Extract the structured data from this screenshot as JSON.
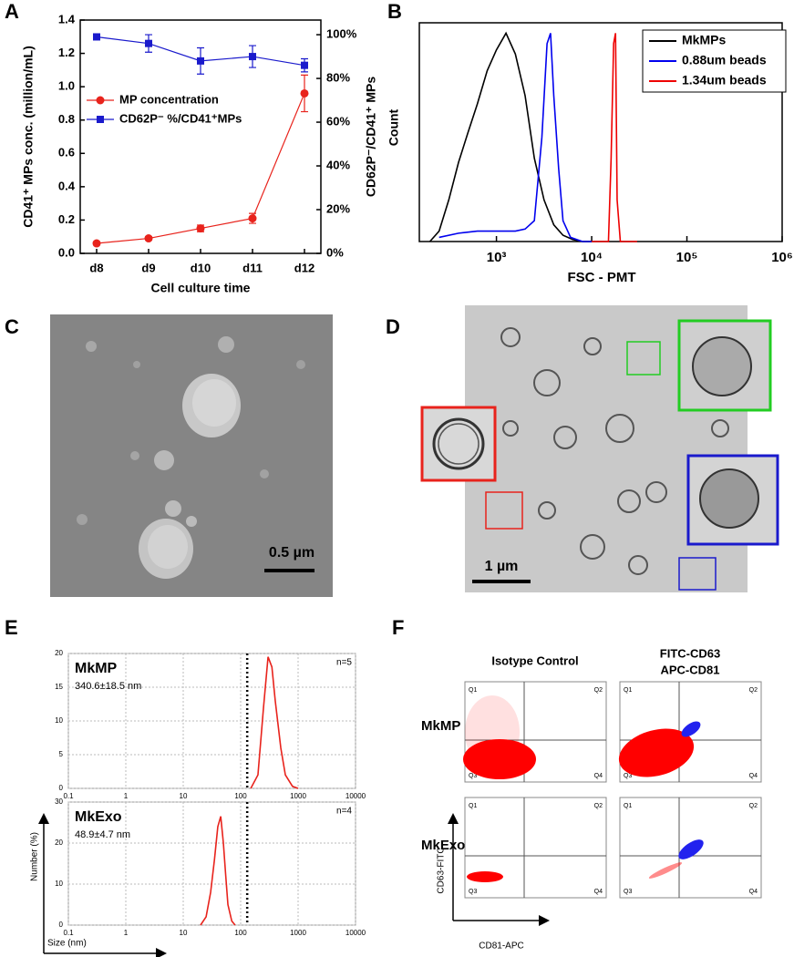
{
  "panel_labels": [
    "A",
    "B",
    "C",
    "D",
    "E",
    "F"
  ],
  "chart_data": [
    {
      "type": "line",
      "categories": [
        "d8",
        "d9",
        "d10",
        "d11",
        "d12"
      ],
      "xlabel": "Cell culture time",
      "ylabel": "CD41⁺ MPs conc. (million/mL)",
      "y2label": "CD62P⁻/CD41⁺ MPs",
      "ylim": [
        0,
        1.4
      ],
      "yticks": [
        {
          "value": 0,
          "label": "0.0"
        },
        0.2,
        0.4,
        0.6,
        0.8,
        {
          "value": 1,
          "label": "1.0"
        },
        1.2,
        1.4
      ],
      "y2lim": [
        0,
        106.7
      ],
      "y2ticks": [
        {
          "value": 0,
          "label": "0%"
        },
        {
          "value": 20,
          "label": "20%"
        },
        {
          "value": 40,
          "label": "40%"
        },
        {
          "value": 60,
          "label": "60%"
        },
        {
          "value": 80,
          "label": "80%"
        },
        {
          "value": 100,
          "label": "100%"
        }
      ],
      "legend": "center left",
      "series": [
        {
          "name": "MP concentration",
          "color": "#e8231c",
          "marker": "circle",
          "values": [
            0.06,
            0.09,
            0.15,
            0.21,
            0.96
          ],
          "errors": [
            0.01,
            0.01,
            0.02,
            0.03,
            0.11
          ]
        },
        {
          "name": "CD62P⁻ %/CD41⁺MPs",
          "color": "#1a1acc",
          "marker": "square",
          "axis": "y2",
          "values": [
            99,
            96,
            88,
            90,
            86
          ],
          "errors": [
            1,
            4,
            6,
            5,
            3
          ]
        }
      ]
    },
    {
      "type": "line",
      "xscale": "log",
      "xlim": [
        155,
        1000000
      ],
      "xticks": [
        {
          "value": 1000,
          "label": "10³"
        },
        {
          "value": 10000,
          "label": "10⁴"
        },
        {
          "value": 100000,
          "label": "10⁵"
        },
        {
          "value": 1000000,
          "label": "10⁶"
        }
      ],
      "xlabel": "FSC - PMT",
      "ylabel": "Count",
      "ylim": [
        0,
        1.05
      ],
      "legend": "upper right",
      "series": [
        {
          "name": "MkMPs",
          "color": "#000000",
          "x": [
            200,
            250,
            316,
            400,
            500,
            630,
            800,
            1000,
            1260,
            1580,
            2000,
            2500,
            3160,
            4000,
            5000,
            6300,
            8000,
            10000
          ],
          "values": [
            0,
            0.05,
            0.2,
            0.38,
            0.52,
            0.66,
            0.82,
            0.92,
            1.0,
            0.9,
            0.7,
            0.4,
            0.2,
            0.08,
            0.03,
            0.01,
            0,
            0
          ]
        },
        {
          "name": "0.88um beads",
          "color": "#0000ee",
          "x": [
            250,
            400,
            630,
            1000,
            1580,
            2000,
            2500,
            3000,
            3400,
            3700,
            4000,
            4500,
            5000,
            6000,
            8000,
            10000
          ],
          "values": [
            0.02,
            0.04,
            0.05,
            0.05,
            0.05,
            0.06,
            0.1,
            0.5,
            0.95,
            1.0,
            0.7,
            0.35,
            0.1,
            0.02,
            0,
            0
          ]
        },
        {
          "name": "1.34um beads",
          "color": "#ee0000",
          "x": [
            10000,
            15000,
            16000,
            17000,
            17800,
            18500,
            20000,
            30000
          ],
          "values": [
            0,
            0,
            0.4,
            0.95,
            1.0,
            0.2,
            0,
            0
          ]
        }
      ]
    },
    {
      "type": "line",
      "xscale": "log",
      "xlim": [
        0.1,
        10000
      ],
      "xticks": [
        0.1,
        1,
        10,
        100,
        1000,
        10000
      ],
      "ylim": [
        0,
        20
      ],
      "yticks": [
        0,
        5,
        10,
        15,
        20
      ],
      "grid": true,
      "reference_x": 130,
      "label": "MkMP",
      "stat": "340.6±18.5  nm",
      "n": "n=5",
      "series": [
        {
          "color": "#e8231c",
          "x": [
            150,
            200,
            250,
            300,
            350,
            400,
            500,
            600,
            800,
            1000
          ],
          "values": [
            0,
            2,
            12,
            19.5,
            18,
            13,
            6,
            2,
            0.3,
            0
          ]
        }
      ]
    },
    {
      "type": "line",
      "xscale": "log",
      "xlim": [
        0.1,
        10000
      ],
      "xticks": [
        0.1,
        1,
        10,
        100,
        1000,
        10000
      ],
      "ylim": [
        0,
        30
      ],
      "yticks": [
        0,
        10,
        20,
        30
      ],
      "grid": true,
      "reference_x": 130,
      "label": "MkExo",
      "stat": "48.9±4.7 nm",
      "n": "n=4",
      "xlabel": "Size (nm)",
      "ylabel": "Number (%)",
      "series": [
        {
          "color": "#e8231c",
          "x": [
            20,
            25,
            30,
            35,
            40,
            45,
            50,
            55,
            60,
            70,
            80
          ],
          "values": [
            0,
            2,
            8,
            16,
            24,
            26.5,
            20,
            12,
            5,
            1,
            0
          ]
        }
      ]
    }
  ],
  "images": [
    {
      "scale_bar": "0.5 µm"
    },
    {
      "scale_bar": "1 µm"
    }
  ],
  "flow": {
    "column_headers": [
      [
        "Isotype Control"
      ],
      [
        "FITC-CD63",
        "APC-CD81"
      ]
    ],
    "row_labels": [
      "MkMP",
      "MkExo"
    ],
    "quadrants": [
      "Q1",
      "Q2",
      "Q3",
      "Q4"
    ],
    "y_label": "CD63-FITC",
    "x_label": "CD81-APC"
  }
}
